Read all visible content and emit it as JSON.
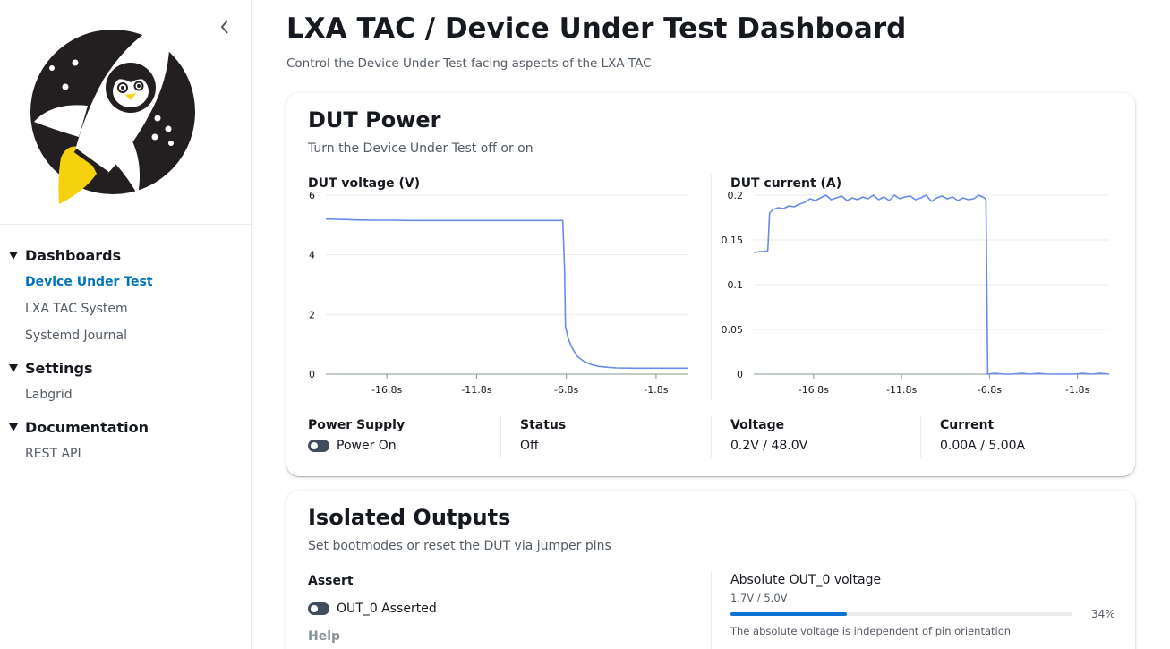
{
  "sidebar": {
    "collapse_icon": "chevron-left-icon",
    "logo": "rocket-penguin-logo",
    "sections": [
      {
        "title": "Dashboards",
        "items": [
          "Device Under Test",
          "LXA TAC System",
          "Systemd Journal"
        ]
      },
      {
        "title": "Settings",
        "items": [
          "Labgrid"
        ]
      },
      {
        "title": "Documentation",
        "items": [
          "REST API"
        ]
      }
    ],
    "active_item": "Device Under Test",
    "active_color": "#0073bb"
  },
  "header": {
    "title": "LXA TAC / Device Under Test Dashboard",
    "subtitle": "Control the Device Under Test facing aspects of the LXA TAC"
  },
  "dut_power": {
    "title": "DUT Power",
    "subtitle": "Turn the Device Under Test off or on",
    "power_supply_label": "Power Supply",
    "power_toggle_label": "Power On",
    "power_on": false,
    "status_label": "Status",
    "status_value": "Off",
    "voltage_label": "Voltage",
    "voltage_value": "0.2V / 48.0V",
    "current_label": "Current",
    "current_value": "0.00A / 5.00A"
  },
  "chart_data": [
    {
      "type": "line",
      "title": "DUT voltage (V)",
      "xlabel": "",
      "ylabel": "",
      "x_ticks": [
        "-16.8s",
        "-11.8s",
        "-6.8s",
        "-1.8s"
      ],
      "x_tick_values": [
        -16.8,
        -11.8,
        -6.8,
        -1.8
      ],
      "xlim": [
        -20.2,
        0
      ],
      "y_ticks": [
        "0",
        "2",
        "4",
        "6"
      ],
      "ylim": [
        0,
        6
      ],
      "grid": true,
      "color": "#688ae8",
      "series": [
        {
          "x": [
            -20.2,
            -19.5,
            -18.5,
            -17.5,
            -16.5,
            -15.5,
            -14.5,
            -13.5,
            -12.5,
            -11.5,
            -10.5,
            -9.5,
            -8.5,
            -7.6,
            -7.2,
            -7.0,
            -6.9,
            -6.85,
            -6.7,
            -6.5,
            -6.2,
            -5.8,
            -5.4,
            -5.0,
            -4.5,
            -4.0,
            -3.0,
            -2.0,
            -1.0,
            0
          ],
          "y": [
            5.2,
            5.19,
            5.17,
            5.16,
            5.16,
            5.15,
            5.15,
            5.15,
            5.15,
            5.15,
            5.15,
            5.15,
            5.15,
            5.15,
            5.15,
            5.15,
            3.5,
            1.6,
            1.2,
            0.9,
            0.6,
            0.42,
            0.32,
            0.26,
            0.23,
            0.21,
            0.2,
            0.2,
            0.2,
            0.2
          ]
        }
      ]
    },
    {
      "type": "line",
      "title": "DUT current (A)",
      "xlabel": "",
      "ylabel": "",
      "x_ticks": [
        "-16.8s",
        "-11.8s",
        "-6.8s",
        "-1.8s"
      ],
      "x_tick_values": [
        -16.8,
        -11.8,
        -6.8,
        -1.8
      ],
      "xlim": [
        -20.2,
        0
      ],
      "y_ticks": [
        "0",
        "0.05",
        "0.1",
        "0.15",
        "0.2"
      ],
      "ylim": [
        0,
        0.2
      ],
      "grid": true,
      "color": "#688ae8",
      "series": [
        {
          "x": [
            -20.2,
            -19.8,
            -19.6,
            -19.4,
            -19.3,
            -19.1,
            -18.8,
            -18.5,
            -18.2,
            -17.9,
            -17.6,
            -17.3,
            -17.0,
            -16.7,
            -16.4,
            -16.1,
            -15.8,
            -15.5,
            -15.2,
            -14.9,
            -14.6,
            -14.3,
            -14.0,
            -13.7,
            -13.4,
            -13.1,
            -12.8,
            -12.5,
            -12.2,
            -11.9,
            -11.6,
            -11.3,
            -11.0,
            -10.7,
            -10.4,
            -10.1,
            -9.8,
            -9.5,
            -9.2,
            -8.9,
            -8.6,
            -8.3,
            -8.0,
            -7.7,
            -7.4,
            -7.1,
            -7.0,
            -6.95,
            -6.9,
            -6.5,
            -6.0,
            -5.5,
            -5.0,
            -4.5,
            -4.0,
            -3.5,
            -3.0,
            -2.5,
            -2.0,
            -1.5,
            -1.0,
            -0.5,
            0
          ],
          "y": [
            0.136,
            0.137,
            0.137,
            0.138,
            0.18,
            0.184,
            0.186,
            0.185,
            0.188,
            0.187,
            0.19,
            0.192,
            0.196,
            0.194,
            0.197,
            0.2,
            0.195,
            0.197,
            0.199,
            0.194,
            0.197,
            0.195,
            0.198,
            0.196,
            0.2,
            0.195,
            0.198,
            0.194,
            0.2,
            0.196,
            0.198,
            0.199,
            0.195,
            0.197,
            0.2,
            0.193,
            0.197,
            0.199,
            0.196,
            0.198,
            0.194,
            0.197,
            0.195,
            0.196,
            0.2,
            0.197,
            0.195,
            0.1,
            0.0,
            0.001,
            0.0,
            0.0,
            0.001,
            0.0,
            0.001,
            0.0,
            0.0,
            0.0,
            0.0,
            0.001,
            0.0,
            0.001,
            0.0
          ]
        }
      ]
    }
  ],
  "isolated_outputs": {
    "title": "Isolated Outputs",
    "subtitle": "Set bootmodes or reset the DUT via jumper pins",
    "assert_label": "Assert",
    "assert_toggle_label": "OUT_0 Asserted",
    "asserted": false,
    "help_label": "Help",
    "voltage_label": "Absolute OUT_0 voltage",
    "voltage_value": "1.7V / 5.0V",
    "voltage_fraction": 0.34,
    "voltage_percent": "34%",
    "voltage_desc": "The absolute voltage is independent of pin orientation",
    "accent_color": "#0972d3"
  }
}
